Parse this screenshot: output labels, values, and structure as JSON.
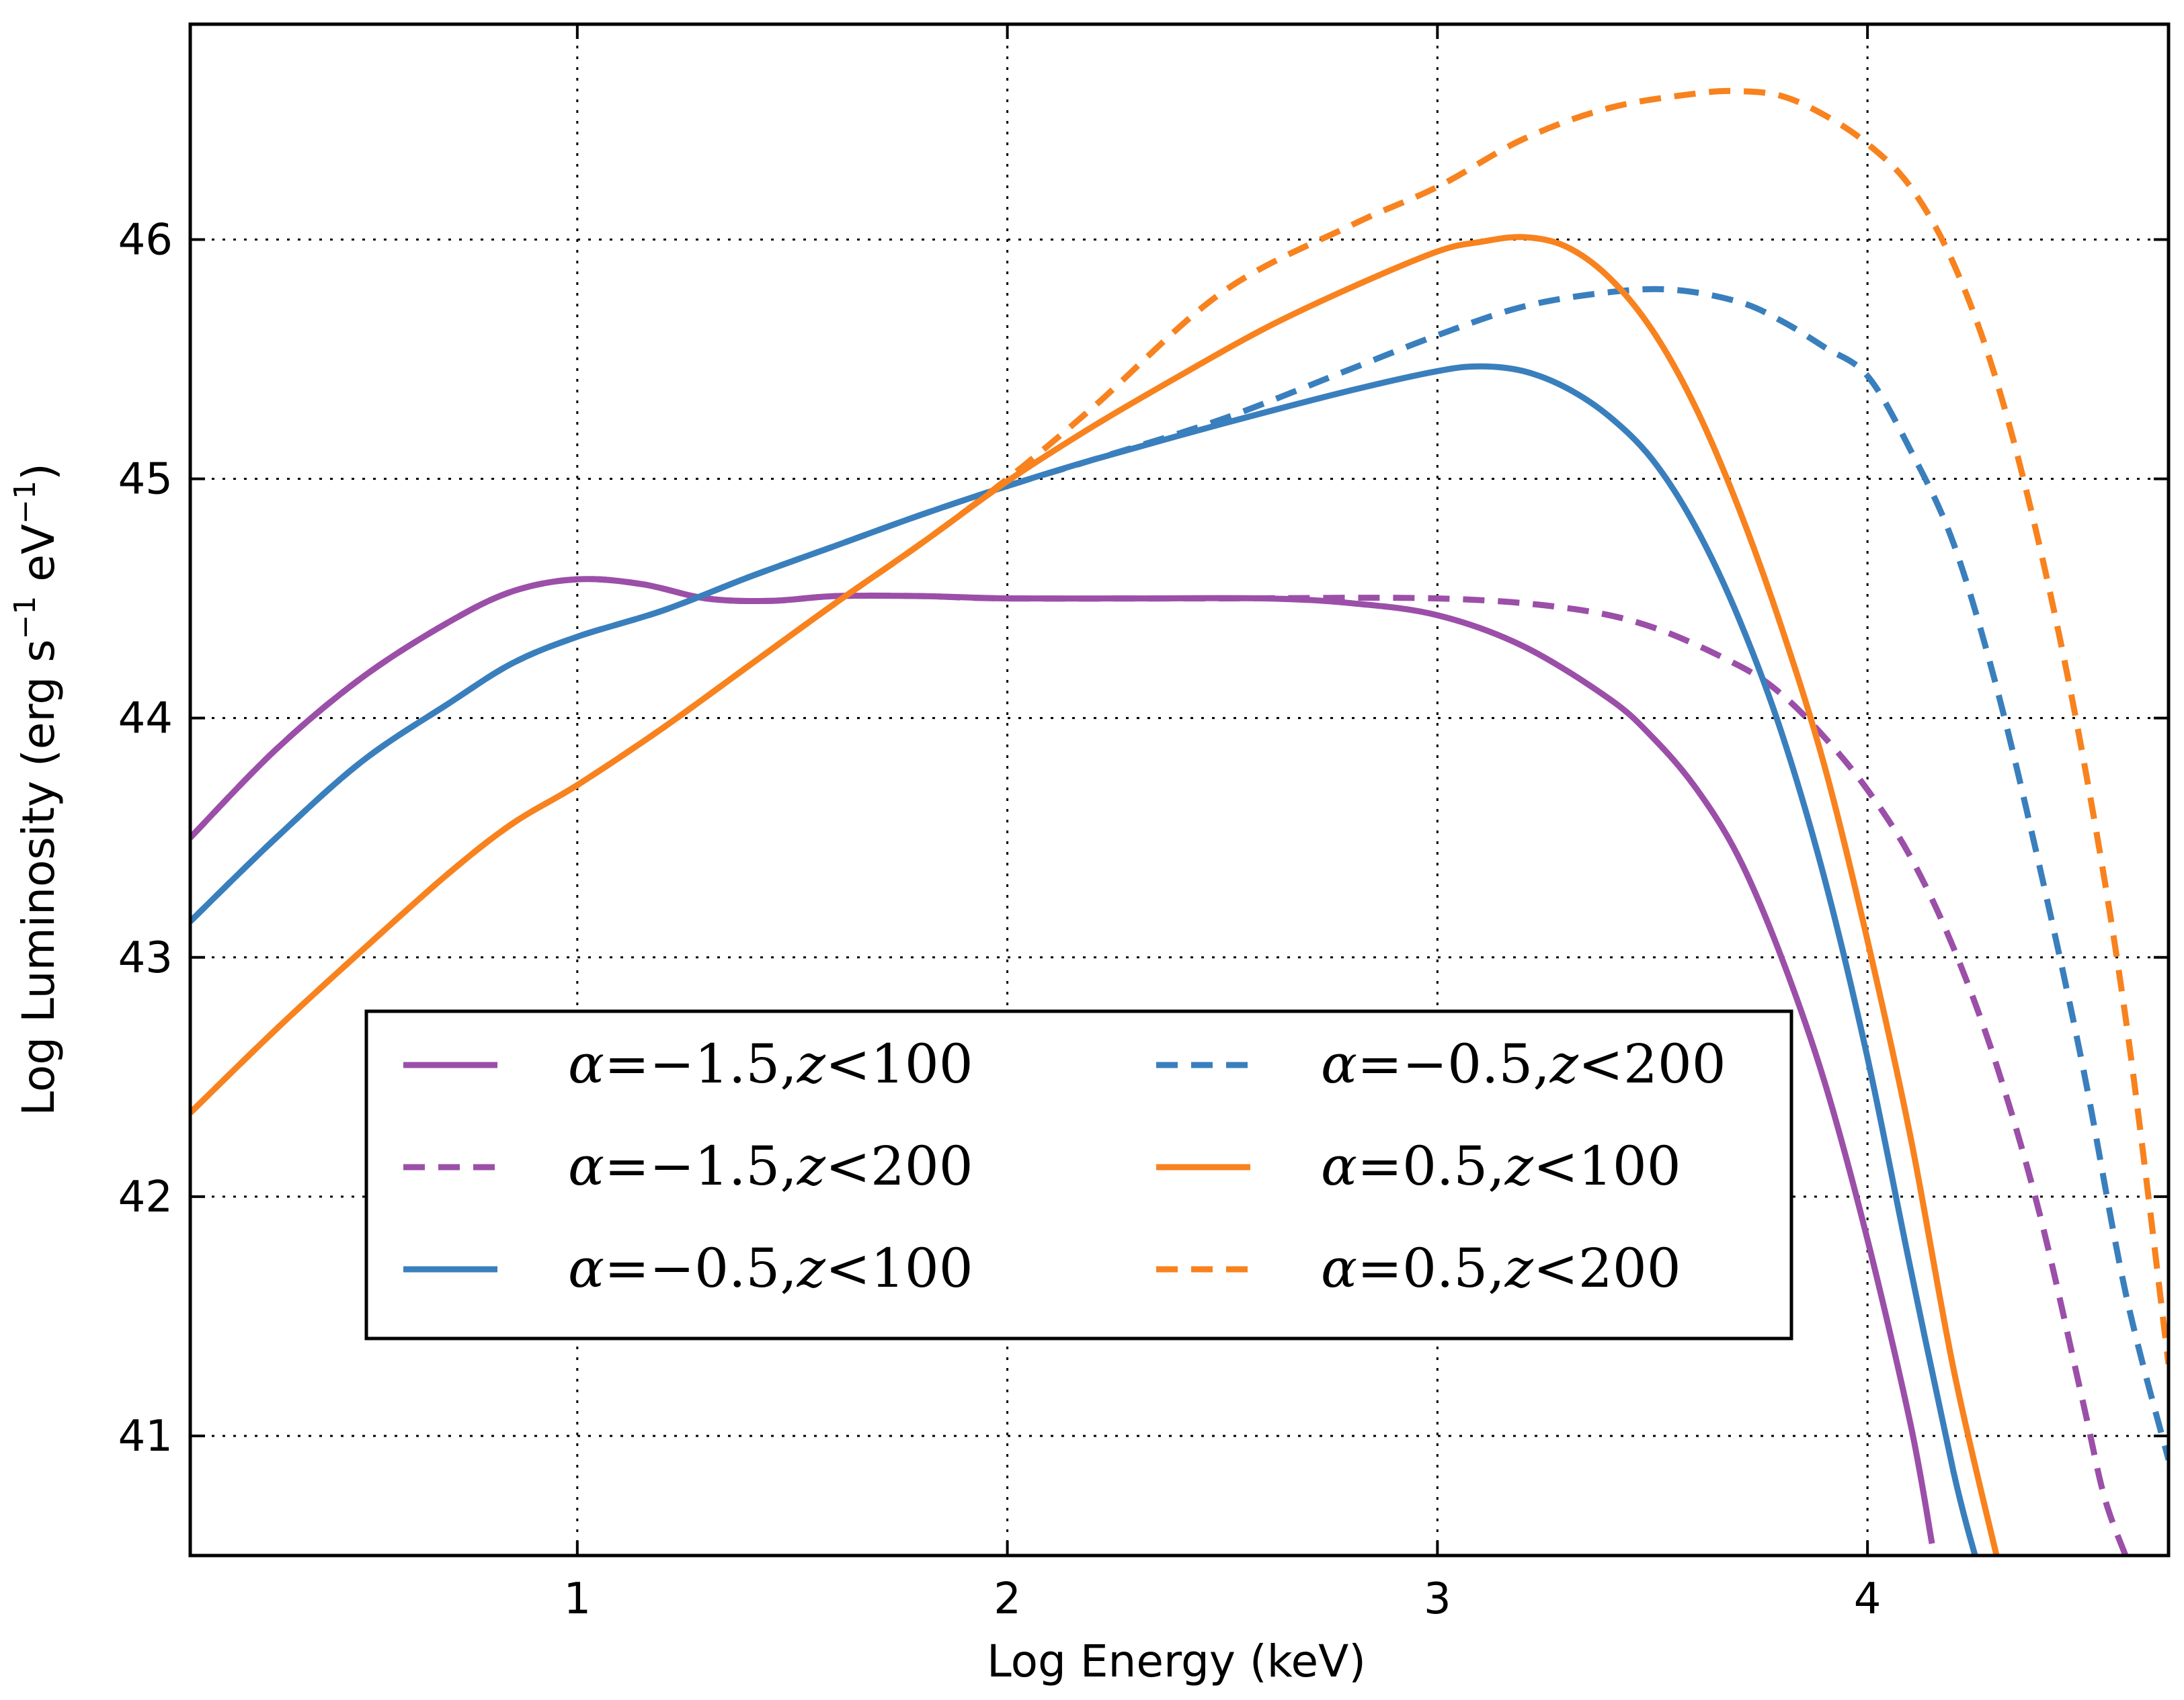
{
  "chart_data": {
    "type": "line",
    "xlabel": "Log Energy (keV)",
    "ylabel": "Log Luminosity (erg s",
    "ylabel_sup1": "−1",
    "ylabel_mid": " eV",
    "ylabel_sup2": "−1",
    "ylabel_end": ")",
    "xlim": [
      0.1,
      4.7
    ],
    "ylim": [
      40.5,
      46.9
    ],
    "xticks": [
      1,
      2,
      3,
      4
    ],
    "yticks": [
      41,
      42,
      43,
      44,
      45,
      46
    ],
    "xtick_labels": [
      "1",
      "2",
      "3",
      "4"
    ],
    "ytick_labels": [
      "41",
      "42",
      "43",
      "44",
      "45",
      "46"
    ],
    "grid": true,
    "legend_placement": "lower-center",
    "legend_columns": 2,
    "series": [
      {
        "name": "α = −1.5, z < 100",
        "color": "#9b4fa8",
        "style": "solid",
        "x": [
          0.1,
          0.3,
          0.5,
          0.7,
          0.85,
          1.0,
          1.15,
          1.3,
          1.45,
          1.6,
          1.8,
          2.0,
          2.3,
          2.6,
          2.8,
          3.0,
          3.2,
          3.4,
          3.5,
          3.6,
          3.7,
          3.8,
          3.9,
          4.0,
          4.1,
          4.15
        ],
        "y": [
          43.5,
          43.87,
          44.17,
          44.4,
          44.53,
          44.58,
          44.56,
          44.5,
          44.49,
          44.51,
          44.51,
          44.5,
          44.5,
          44.5,
          44.48,
          44.43,
          44.3,
          44.08,
          43.92,
          43.71,
          43.42,
          43.0,
          42.48,
          41.82,
          41.05,
          40.55
        ]
      },
      {
        "name": "α = −1.5, z < 200",
        "color": "#9b4fa8",
        "style": "dashed",
        "x": [
          0.1,
          0.3,
          0.5,
          0.7,
          0.85,
          1.0,
          1.15,
          1.3,
          1.45,
          1.6,
          1.8,
          2.0,
          2.5,
          3.0,
          3.3,
          3.5,
          3.7,
          3.8,
          3.9,
          4.0,
          4.1,
          4.2,
          4.3,
          4.4,
          4.5,
          4.55,
          4.6
        ],
        "y": [
          43.5,
          43.87,
          44.17,
          44.4,
          44.53,
          44.58,
          44.56,
          44.5,
          44.49,
          44.51,
          44.51,
          44.5,
          44.5,
          44.5,
          44.46,
          44.38,
          44.22,
          44.1,
          43.92,
          43.7,
          43.42,
          43.04,
          42.55,
          41.93,
          41.15,
          40.75,
          40.5
        ]
      },
      {
        "name": "α = −0.5, z < 100",
        "color": "#3a7fbd",
        "style": "solid",
        "x": [
          0.1,
          0.3,
          0.5,
          0.7,
          0.85,
          1.0,
          1.2,
          1.4,
          1.6,
          1.8,
          2.0,
          2.2,
          2.5,
          2.8,
          3.0,
          3.1,
          3.2,
          3.3,
          3.4,
          3.5,
          3.6,
          3.7,
          3.8,
          3.9,
          4.0,
          4.1,
          4.2,
          4.25
        ],
        "y": [
          43.15,
          43.5,
          43.82,
          44.06,
          44.23,
          44.34,
          44.45,
          44.59,
          44.72,
          44.85,
          44.97,
          45.08,
          45.23,
          45.37,
          45.45,
          45.47,
          45.45,
          45.38,
          45.26,
          45.08,
          44.8,
          44.42,
          43.94,
          43.33,
          42.58,
          41.7,
          40.85,
          40.5
        ]
      },
      {
        "name": "α = −0.5, z < 200",
        "color": "#3a7fbd",
        "style": "dashed",
        "x": [
          0.1,
          0.3,
          0.5,
          0.7,
          0.85,
          1.0,
          1.2,
          1.4,
          1.6,
          1.8,
          2.0,
          2.2,
          2.5,
          2.8,
          3.0,
          3.2,
          3.4,
          3.55,
          3.7,
          3.8,
          3.9,
          4.0,
          4.1,
          4.2,
          4.3,
          4.4,
          4.5,
          4.6,
          4.7
        ],
        "y": [
          43.15,
          43.5,
          43.82,
          44.06,
          44.23,
          44.34,
          44.45,
          44.59,
          44.72,
          44.85,
          44.97,
          45.08,
          45.25,
          45.46,
          45.6,
          45.72,
          45.78,
          45.79,
          45.74,
          45.66,
          45.55,
          45.43,
          45.12,
          44.73,
          44.13,
          43.38,
          42.55,
          41.6,
          40.9
        ]
      },
      {
        "name": "α = 0.5, z < 100",
        "color": "#f8821e",
        "style": "solid",
        "x": [
          0.1,
          0.3,
          0.5,
          0.7,
          0.85,
          1.0,
          1.2,
          1.4,
          1.6,
          1.8,
          2.0,
          2.2,
          2.4,
          2.6,
          2.8,
          3.0,
          3.1,
          3.2,
          3.3,
          3.4,
          3.5,
          3.6,
          3.7,
          3.8,
          3.9,
          4.0,
          4.1,
          4.2,
          4.3
        ],
        "y": [
          42.35,
          42.7,
          43.03,
          43.35,
          43.56,
          43.72,
          43.96,
          44.22,
          44.48,
          44.73,
          44.99,
          45.22,
          45.43,
          45.63,
          45.8,
          45.95,
          45.99,
          46.01,
          45.97,
          45.84,
          45.62,
          45.3,
          44.88,
          44.38,
          43.8,
          43.07,
          42.25,
          41.28,
          40.5
        ]
      },
      {
        "name": "α = 0.5, z < 200",
        "color": "#f8821e",
        "style": "dashed",
        "x": [
          0.1,
          0.3,
          0.5,
          0.7,
          0.85,
          1.0,
          1.2,
          1.4,
          1.6,
          1.8,
          2.0,
          2.2,
          2.5,
          2.8,
          3.0,
          3.2,
          3.4,
          3.6,
          3.7,
          3.8,
          3.9,
          4.0,
          4.1,
          4.2,
          4.3,
          4.4,
          4.5,
          4.6,
          4.7
        ],
        "y": [
          42.35,
          42.7,
          43.03,
          43.35,
          43.56,
          43.72,
          43.96,
          44.22,
          44.48,
          44.73,
          45.0,
          45.3,
          45.78,
          46.06,
          46.22,
          46.42,
          46.55,
          46.61,
          46.62,
          46.6,
          46.52,
          46.4,
          46.22,
          45.9,
          45.41,
          44.72,
          43.85,
          42.75,
          41.3
        ]
      }
    ]
  },
  "legend": {
    "entries": [
      {
        "alpha_value": "−1.5",
        "z_value": "100"
      },
      {
        "alpha_value": "−1.5",
        "z_value": "200"
      },
      {
        "alpha_value": "−0.5",
        "z_value": "100"
      },
      {
        "alpha_value": "−0.5",
        "z_value": "200"
      },
      {
        "alpha_value": "0.5",
        "z_value": "100"
      },
      {
        "alpha_value": "0.5",
        "z_value": "200"
      }
    ]
  }
}
